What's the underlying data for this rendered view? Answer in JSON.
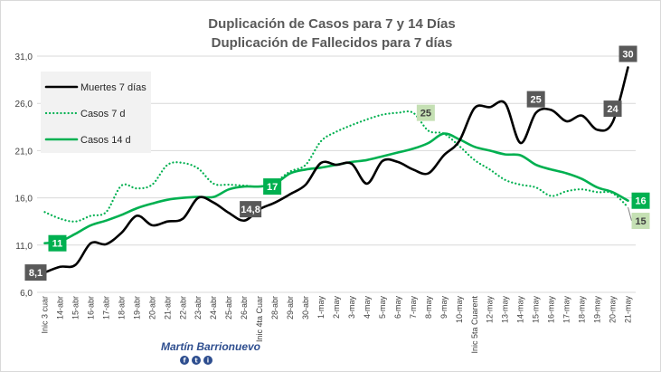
{
  "chart_data": {
    "type": "line",
    "title": "Duplicación de Casos para 7 y 14 Días",
    "subtitle": "Duplicación de Fallecidos para 7 días",
    "ylim": [
      6,
      31
    ],
    "yticks": [
      6,
      11,
      16,
      21,
      26,
      31
    ],
    "ytick_labels": [
      "6,0",
      "11,0",
      "16,0",
      "21,0",
      "26,0",
      "31,0"
    ],
    "grid": true,
    "legend_position": "top-left",
    "categories": [
      "Inic 3 cuar",
      "14-abr",
      "15-abr",
      "16-abr",
      "17-abr",
      "18-abr",
      "19-abr",
      "20-abr",
      "21-abr",
      "22-abr",
      "23-abr",
      "24-abr",
      "25-abr",
      "26-abr",
      "Inic 4ta Cuar",
      "28-abr",
      "29-abr",
      "30-abr",
      "1-may",
      "2-may",
      "3-may",
      "4-may",
      "5-may",
      "6-may",
      "7-may",
      "8-may",
      "9-may",
      "10-may",
      "Inic 5ta Cuarent",
      "12-may",
      "13-may",
      "14-may",
      "15-may",
      "16-may",
      "17-may",
      "18-may",
      "19-may",
      "20-may",
      "21-may"
    ],
    "series": [
      {
        "name": "Muertes 7 días",
        "color": "#000000",
        "style": "solid",
        "values": [
          8.1,
          8.7,
          8.9,
          11.2,
          11.1,
          12.3,
          14.1,
          13.1,
          13.5,
          13.8,
          16.0,
          15.5,
          14.4,
          13.6,
          14.8,
          15.5,
          16.4,
          17.4,
          19.7,
          19.5,
          19.6,
          17.5,
          19.9,
          19.8,
          19.0,
          18.6,
          20.5,
          22.0,
          25.5,
          25.6,
          26.0,
          21.8,
          25.0,
          25.3,
          24.1,
          24.7,
          23.2,
          24.0,
          29.8
        ]
      },
      {
        "name": "Casos 7 d",
        "color": "#00b050",
        "style": "dotted",
        "values": [
          14.5,
          13.8,
          13.5,
          14.1,
          14.5,
          17.3,
          17.0,
          17.4,
          19.5,
          19.7,
          19.1,
          17.5,
          17.4,
          17.3,
          17.2,
          17.7,
          18.8,
          19.5,
          22.0,
          23.0,
          23.7,
          24.3,
          24.8,
          25.0,
          25.0,
          23.1,
          22.8,
          21.5,
          20.0,
          19.0,
          17.9,
          17.4,
          17.1,
          16.2,
          16.7,
          16.9,
          16.6,
          16.5,
          15.0
        ]
      },
      {
        "name": "Casos 14 d",
        "color": "#00b050",
        "style": "solid",
        "values": [
          11.2,
          11.4,
          12.2,
          13.1,
          13.6,
          14.2,
          14.9,
          15.4,
          15.8,
          16.0,
          16.1,
          16.1,
          16.9,
          17.2,
          17.2,
          17.5,
          18.6,
          19.0,
          19.2,
          19.5,
          19.8,
          20.0,
          20.4,
          20.8,
          21.2,
          21.8,
          22.8,
          22.2,
          21.4,
          21.0,
          20.6,
          20.5,
          19.5,
          19.0,
          18.6,
          18.0,
          17.1,
          16.6,
          15.7
        ]
      }
    ],
    "data_labels": [
      {
        "text": "8,1",
        "series": 0,
        "index": 0,
        "side": "left",
        "bg": "#595959",
        "fg": "#ffffff"
      },
      {
        "text": "11",
        "series": 2,
        "index": 0,
        "side": "right",
        "bg": "#00b050",
        "fg": "#ffffff"
      },
      {
        "text": "14,8",
        "series": 0,
        "index": 14,
        "side": "left",
        "bg": "#595959",
        "fg": "#ffffff"
      },
      {
        "text": "17",
        "series": 2,
        "index": 14,
        "side": "right",
        "bg": "#00b050",
        "fg": "#ffffff"
      },
      {
        "text": "25",
        "series": 1,
        "index": 24,
        "side": "right",
        "bg": "#c5e0b4",
        "fg": "#404040"
      },
      {
        "text": "25",
        "series": 0,
        "index": 32,
        "side": "above",
        "bg": "#595959",
        "fg": "#ffffff"
      },
      {
        "text": "24",
        "series": 0,
        "index": 37,
        "side": "above",
        "bg": "#595959",
        "fg": "#ffffff"
      },
      {
        "text": "30",
        "series": 0,
        "index": 38,
        "side": "above",
        "bg": "#595959",
        "fg": "#ffffff"
      },
      {
        "text": "16",
        "series": 2,
        "index": 38,
        "side": "right",
        "bg": "#00b050",
        "fg": "#ffffff"
      },
      {
        "text": "15",
        "series": 1,
        "index": 38,
        "side": "below",
        "bg": "#c5e0b4",
        "fg": "#404040"
      }
    ]
  },
  "watermark": {
    "name": "Martín Barrionuevo",
    "social": [
      "f",
      "t",
      "i"
    ]
  },
  "colors": {
    "grid": "#d9d9d9",
    "legend_bg": "#f2f2f2",
    "title": "#595959",
    "social_bg": "#2e4e8f"
  }
}
